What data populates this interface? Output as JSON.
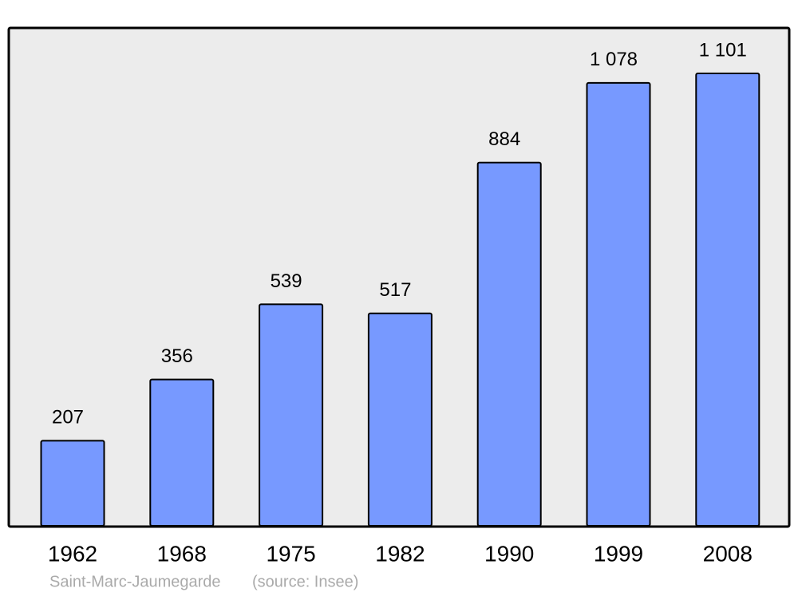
{
  "chart_data": {
    "type": "bar",
    "categories": [
      "1962",
      "1968",
      "1975",
      "1982",
      "1990",
      "1999",
      "2008"
    ],
    "values": [
      207,
      356,
      539,
      517,
      884,
      1078,
      1101
    ],
    "value_labels": [
      "207",
      "356",
      "539",
      "517",
      "884",
      "1 078",
      "1 101"
    ],
    "color": "#7799ff",
    "caption": "Saint-Marc-Jaumegarde",
    "source": "(source: Insee)"
  }
}
